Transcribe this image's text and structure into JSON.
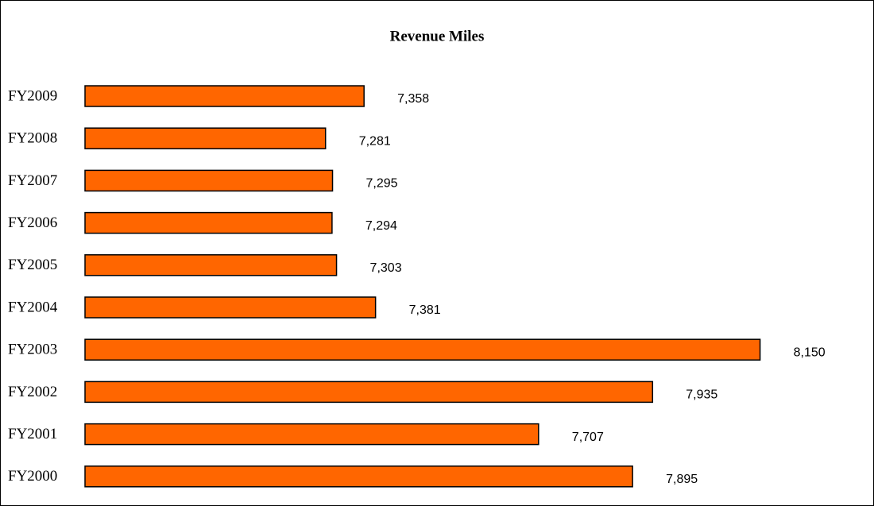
{
  "chart_data": {
    "type": "bar",
    "orientation": "horizontal",
    "title": "Revenue Miles",
    "categories": [
      "FY2009",
      "FY2008",
      "FY2007",
      "FY2006",
      "FY2005",
      "FY2004",
      "FY2003",
      "FY2002",
      "FY2001",
      "FY2000"
    ],
    "values": [
      7358,
      7281,
      7295,
      7294,
      7303,
      7381,
      8150,
      7935,
      7707,
      7895
    ],
    "value_labels": [
      "7,358",
      "7,281",
      "7,295",
      "7,294",
      "7,303",
      "7,381",
      "8,150",
      "7,935",
      "7,707",
      "7,895"
    ],
    "color": "#ff6600",
    "xlim": [
      6800,
      8300
    ]
  }
}
